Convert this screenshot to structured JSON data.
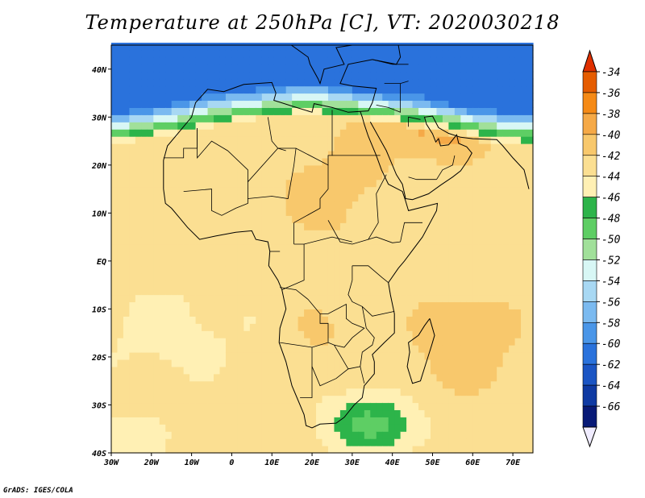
{
  "title": "Temperature at 250hPa [C], VT: 2020030218",
  "credit": "GrADS: IGES/COLA",
  "map": {
    "projection": "lat-lon",
    "lon_range": [
      -30,
      75
    ],
    "lat_range": [
      -40,
      45
    ],
    "lon_ticks": [
      {
        "value": -30,
        "label": "30W"
      },
      {
        "value": -20,
        "label": "20W"
      },
      {
        "value": -10,
        "label": "10W"
      },
      {
        "value": 0,
        "label": "0"
      },
      {
        "value": 10,
        "label": "10E"
      },
      {
        "value": 20,
        "label": "20E"
      },
      {
        "value": 30,
        "label": "30E"
      },
      {
        "value": 40,
        "label": "40E"
      },
      {
        "value": 50,
        "label": "50E"
      },
      {
        "value": 60,
        "label": "60E"
      },
      {
        "value": 70,
        "label": "70E"
      }
    ],
    "lat_ticks": [
      {
        "value": 40,
        "label": "40N"
      },
      {
        "value": 30,
        "label": "30N"
      },
      {
        "value": 20,
        "label": "20N"
      },
      {
        "value": 10,
        "label": "10N"
      },
      {
        "value": 0,
        "label": "EQ"
      },
      {
        "value": -10,
        "label": "10S"
      },
      {
        "value": -20,
        "label": "20S"
      },
      {
        "value": -30,
        "label": "30S"
      },
      {
        "value": -40,
        "label": "40S"
      }
    ],
    "coastline": [
      [
        -17,
        15
      ],
      [
        -17,
        21
      ],
      [
        -16,
        24
      ],
      [
        -13,
        27
      ],
      [
        -10,
        30
      ],
      [
        -9,
        33
      ],
      [
        -6,
        35.8
      ],
      [
        -2,
        35.3
      ],
      [
        3,
        36.8
      ],
      [
        10,
        37.2
      ],
      [
        11,
        35
      ],
      [
        10.5,
        33.5
      ],
      [
        15,
        32.3
      ],
      [
        20,
        31
      ],
      [
        20.5,
        32.8
      ],
      [
        25,
        32
      ],
      [
        29,
        31
      ],
      [
        32,
        31.2
      ],
      [
        34,
        31.3
      ],
      [
        35,
        33
      ],
      [
        36,
        36
      ],
      [
        30,
        36.5
      ],
      [
        27,
        37
      ],
      [
        29,
        41
      ],
      [
        35,
        42
      ],
      [
        41,
        41
      ],
      [
        42,
        42.5
      ],
      [
        41.5,
        45
      ],
      [
        30,
        45
      ],
      [
        26,
        44.5
      ],
      [
        28,
        41
      ],
      [
        23,
        40
      ],
      [
        22,
        37
      ],
      [
        21.5,
        38
      ],
      [
        19.5,
        41
      ],
      [
        19,
        42.5
      ],
      [
        14,
        45.5
      ],
      [
        -30,
        45.5
      ]
    ],
    "africa_coast": [
      [
        -17,
        15
      ],
      [
        -16.5,
        12
      ],
      [
        -15,
        11
      ],
      [
        -13,
        9
      ],
      [
        -11,
        7
      ],
      [
        -8,
        4.5
      ],
      [
        -4,
        5.2
      ],
      [
        1,
        6
      ],
      [
        5,
        6.3
      ],
      [
        6,
        4.5
      ],
      [
        9,
        4
      ],
      [
        9.5,
        2
      ],
      [
        9.2,
        -1
      ],
      [
        11.5,
        -4
      ],
      [
        12.5,
        -6
      ],
      [
        13.5,
        -10
      ],
      [
        12,
        -14
      ],
      [
        11.8,
        -17
      ],
      [
        13.5,
        -21
      ],
      [
        15,
        -26
      ],
      [
        16.5,
        -29
      ],
      [
        18,
        -32
      ],
      [
        18.5,
        -34.3
      ],
      [
        20,
        -34.8
      ],
      [
        22,
        -34
      ],
      [
        26,
        -33.8
      ],
      [
        28,
        -32.6
      ],
      [
        30.5,
        -30
      ],
      [
        32.5,
        -28.5
      ],
      [
        33,
        -26
      ],
      [
        35.5,
        -23.5
      ],
      [
        35.5,
        -21
      ],
      [
        35,
        -19.5
      ],
      [
        38,
        -17
      ],
      [
        40.5,
        -15
      ],
      [
        40.5,
        -11
      ],
      [
        39.5,
        -7
      ],
      [
        39,
        -4.5
      ],
      [
        41.5,
        -1.5
      ],
      [
        43,
        0
      ],
      [
        47.5,
        5
      ],
      [
        51,
        10.5
      ],
      [
        51.2,
        12
      ],
      [
        44,
        10.5
      ],
      [
        43.3,
        12.5
      ],
      [
        42.5,
        14.5
      ],
      [
        39,
        16
      ],
      [
        37.3,
        19
      ],
      [
        36,
        22
      ],
      [
        34,
        26
      ],
      [
        33,
        28.5
      ],
      [
        32.5,
        30
      ],
      [
        32,
        31.2
      ]
    ],
    "arabia_coast": [
      [
        34.5,
        29
      ],
      [
        36.5,
        26
      ],
      [
        38.5,
        23
      ],
      [
        39.5,
        21
      ],
      [
        41,
        18
      ],
      [
        42.5,
        16
      ],
      [
        43.3,
        13
      ],
      [
        45,
        12.8
      ],
      [
        49,
        14
      ],
      [
        52,
        15.8
      ],
      [
        55,
        17.5
      ],
      [
        57,
        18.8
      ],
      [
        58.8,
        21
      ],
      [
        59.8,
        22.5
      ],
      [
        58.5,
        23.8
      ],
      [
        56.5,
        24.5
      ],
      [
        56,
        26.3
      ],
      [
        54,
        24.2
      ],
      [
        52,
        24
      ],
      [
        51.5,
        25.5
      ],
      [
        50.8,
        24.8
      ],
      [
        50,
        26.5
      ],
      [
        48.5,
        28.5
      ],
      [
        48,
        30
      ],
      [
        50,
        30.2
      ],
      [
        51.5,
        27.8
      ],
      [
        54,
        26.6
      ],
      [
        57,
        25.8
      ],
      [
        60,
        25.5
      ],
      [
        66,
        25.3
      ],
      [
        67.5,
        24
      ],
      [
        70,
        21.5
      ],
      [
        72.8,
        19
      ],
      [
        74,
        15
      ]
    ],
    "madagascar": [
      [
        49.3,
        -12
      ],
      [
        50.5,
        -15.5
      ],
      [
        49.8,
        -17.5
      ],
      [
        48.3,
        -21.5
      ],
      [
        47,
        -25
      ],
      [
        45,
        -25.5
      ],
      [
        43.7,
        -22
      ],
      [
        44.3,
        -19
      ],
      [
        44,
        -17
      ],
      [
        46.5,
        -15.5
      ],
      [
        48,
        -13.5
      ],
      [
        49.3,
        -12
      ]
    ],
    "borders": [
      [
        [
          -8.6,
          27.7
        ],
        [
          -8.6,
          21.5
        ],
        [
          -5,
          25
        ],
        [
          -1,
          23
        ],
        [
          4,
          19
        ],
        [
          4,
          16.5
        ],
        [
          11.5,
          23.5
        ],
        [
          13.5,
          23
        ]
      ],
      [
        [
          -17,
          21.5
        ],
        [
          -12,
          21.5
        ],
        [
          -12,
          23.5
        ],
        [
          -8.6,
          23.5
        ],
        [
          -8.6,
          27.7
        ]
      ],
      [
        [
          -12,
          14.5
        ],
        [
          -5,
          15
        ],
        [
          -5,
          10.5
        ],
        [
          -2.5,
          9.5
        ],
        [
          1,
          11
        ],
        [
          4,
          12
        ],
        [
          4,
          16.5
        ]
      ],
      [
        [
          9,
          30
        ],
        [
          10,
          25
        ],
        [
          11.5,
          23.5
        ],
        [
          16,
          23.5
        ],
        [
          24,
          20
        ],
        [
          24,
          22
        ],
        [
          25,
          22
        ],
        [
          25,
          31.5
        ]
      ],
      [
        [
          24,
          20
        ],
        [
          24,
          15
        ],
        [
          22,
          13
        ],
        [
          22,
          11
        ],
        [
          15.5,
          8
        ],
        [
          15.5,
          3.5
        ]
      ],
      [
        [
          16,
          23.5
        ],
        [
          15.5,
          20
        ],
        [
          14,
          13
        ],
        [
          10,
          13.5
        ],
        [
          4,
          13
        ]
      ],
      [
        [
          25,
          22
        ],
        [
          37,
          22
        ]
      ],
      [
        [
          24,
          8.5
        ],
        [
          27,
          4
        ],
        [
          30,
          3.5
        ],
        [
          34,
          4.5
        ],
        [
          36,
          5
        ],
        [
          40,
          3.8
        ],
        [
          42,
          4
        ]
      ],
      [
        [
          34,
          4.5
        ],
        [
          36.5,
          8
        ],
        [
          36,
          14
        ],
        [
          38.5,
          18
        ]
      ],
      [
        [
          42,
          4
        ],
        [
          43,
          8
        ],
        [
          47.5,
          8
        ]
      ],
      [
        [
          15.5,
          3.5
        ],
        [
          18,
          3.5
        ],
        [
          25,
          5
        ],
        [
          30,
          4
        ]
      ],
      [
        [
          12,
          2
        ],
        [
          9.5,
          2
        ]
      ],
      [
        [
          18,
          3.5
        ],
        [
          18,
          -4
        ],
        [
          12.5,
          -6
        ]
      ],
      [
        [
          12,
          -5.5
        ],
        [
          16,
          -6
        ],
        [
          19,
          -8
        ],
        [
          22,
          -11
        ],
        [
          22,
          -13
        ],
        [
          24,
          -13
        ],
        [
          24,
          -17
        ],
        [
          20,
          -18
        ],
        [
          12,
          -17
        ]
      ],
      [
        [
          30,
          -1
        ],
        [
          30,
          -4
        ],
        [
          29,
          -7
        ],
        [
          30,
          -8.5
        ],
        [
          32.5,
          -9.5
        ],
        [
          35,
          -11.5
        ],
        [
          40.5,
          -10.5
        ]
      ],
      [
        [
          30,
          -1
        ],
        [
          34,
          -1
        ],
        [
          37.5,
          -3.5
        ],
        [
          39,
          -4.5
        ]
      ],
      [
        [
          22,
          -11
        ],
        [
          24,
          -11
        ],
        [
          28.5,
          -9
        ],
        [
          28.5,
          -12
        ],
        [
          30,
          -13
        ],
        [
          33,
          -14
        ],
        [
          30,
          -16
        ],
        [
          28,
          -18
        ],
        [
          25.5,
          -17.5
        ],
        [
          24,
          -17
        ]
      ],
      [
        [
          20,
          -18
        ],
        [
          20,
          -22
        ],
        [
          20,
          -25
        ],
        [
          20,
          -28.5
        ],
        [
          17,
          -28.5
        ]
      ],
      [
        [
          20,
          -22
        ],
        [
          22,
          -26
        ],
        [
          26,
          -24.5
        ],
        [
          29,
          -22.5
        ],
        [
          32,
          -22
        ],
        [
          33,
          -25.5
        ]
      ],
      [
        [
          25.5,
          -17.5
        ],
        [
          29,
          -22.5
        ]
      ],
      [
        [
          32.5,
          -9.5
        ],
        [
          33.5,
          -14
        ],
        [
          35.5,
          -16
        ],
        [
          35,
          -17.5
        ],
        [
          32.5,
          -19
        ],
        [
          32,
          -22
        ]
      ],
      [
        [
          44,
          28
        ],
        [
          44,
          30
        ],
        [
          47,
          29.5
        ]
      ],
      [
        [
          36,
          32.5
        ],
        [
          39,
          32
        ],
        [
          42,
          31
        ],
        [
          42,
          37
        ]
      ],
      [
        [
          38,
          37
        ],
        [
          42,
          37
        ],
        [
          44,
          37.5
        ]
      ],
      [
        [
          51,
          17
        ],
        [
          52.5,
          19
        ],
        [
          55,
          20
        ],
        [
          55.5,
          22
        ]
      ],
      [
        [
          44,
          17.5
        ],
        [
          46,
          17
        ],
        [
          51,
          17
        ]
      ],
      [
        [
          35,
          42
        ],
        [
          40,
          41
        ],
        [
          44,
          41
        ]
      ]
    ],
    "colormap_anchors": [
      {
        "v": -34,
        "c": "#e55c00"
      },
      {
        "v": -36,
        "c": "#f58a16"
      },
      {
        "v": -38,
        "c": "#f5a947"
      },
      {
        "v": -40,
        "c": "#f8c86c"
      },
      {
        "v": -42,
        "c": "#fbdf92"
      },
      {
        "v": -44,
        "c": "#fff0b4"
      },
      {
        "v": -46,
        "c": "#2db44a"
      },
      {
        "v": -48,
        "c": "#5ece64"
      },
      {
        "v": -50,
        "c": "#a1e09a"
      },
      {
        "v": -52,
        "c": "#d8f7f5"
      },
      {
        "v": -54,
        "c": "#a8d8f3"
      },
      {
        "v": -56,
        "c": "#7bbaf0"
      },
      {
        "v": -58,
        "c": "#4a96e8"
      },
      {
        "v": -60,
        "c": "#2a72dc"
      },
      {
        "v": -62,
        "c": "#1b55c4"
      },
      {
        "v": -64,
        "c": "#0f3aa3"
      },
      {
        "v": -66,
        "c": "#081a77"
      }
    ]
  },
  "colorbar": {
    "top_arrow_color": "#e03000",
    "bottom_arrow_color": "#f0ecff",
    "bands": [
      {
        "label": "-34",
        "color": "#e55c00"
      },
      {
        "label": "-36",
        "color": "#f58a16"
      },
      {
        "label": "-38",
        "color": "#f5a947"
      },
      {
        "label": "-40",
        "color": "#f8c86c"
      },
      {
        "label": "-42",
        "color": "#fbdf92"
      },
      {
        "label": "-44",
        "color": "#fff0b4"
      },
      {
        "label": "-46",
        "color": "#2db44a"
      },
      {
        "label": "-48",
        "color": "#5ece64"
      },
      {
        "label": "-50",
        "color": "#a1e09a"
      },
      {
        "label": "-52",
        "color": "#d8f7f5"
      },
      {
        "label": "-54",
        "color": "#a8d8f3"
      },
      {
        "label": "-56",
        "color": "#7bbaf0"
      },
      {
        "label": "-58",
        "color": "#4a96e8"
      },
      {
        "label": "-60",
        "color": "#2a72dc"
      },
      {
        "label": "-62",
        "color": "#1b55c4"
      },
      {
        "label": "-64",
        "color": "#0f3aa3"
      },
      {
        "label": "-66",
        "color": "#081a77"
      }
    ]
  }
}
